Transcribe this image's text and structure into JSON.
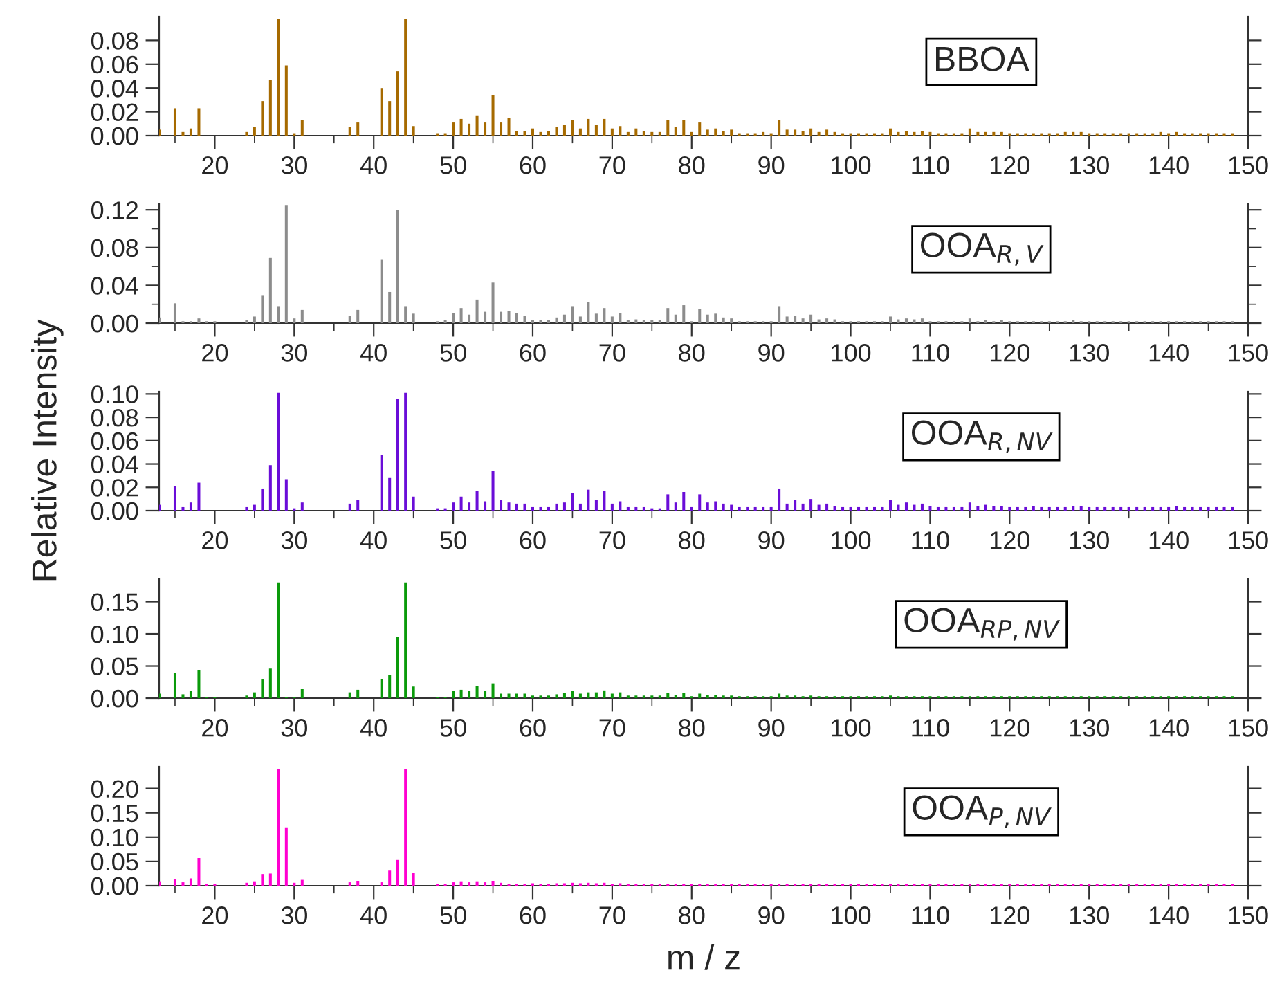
{
  "chart_data": [
    {
      "type": "bar",
      "annotations": [
        "BBOA"
      ],
      "color": "#a66a00",
      "xlim": [
        13,
        150
      ],
      "ylim": [
        0,
        0.1
      ],
      "yticks": [
        {
          "value": 0,
          "label": "0.00"
        },
        {
          "value": 0.02,
          "label": "0.02"
        },
        {
          "value": 0.04,
          "label": "0.04"
        },
        {
          "value": 0.06,
          "label": "0.06"
        },
        {
          "value": 0.08,
          "label": "0.08"
        }
      ],
      "xticks": [
        {
          "value": 15,
          "label": null
        },
        20,
        {
          "value": 25,
          "label": null
        },
        30,
        {
          "value": 35,
          "label": null
        },
        40,
        {
          "value": 45,
          "label": null
        },
        50,
        {
          "value": 55,
          "label": null
        },
        60,
        {
          "value": 65,
          "label": null
        },
        70,
        {
          "value": 75,
          "label": null
        },
        80,
        {
          "value": 85,
          "label": null
        },
        90,
        {
          "value": 95,
          "label": null
        },
        100,
        {
          "value": 105,
          "label": null
        },
        110,
        {
          "value": 115,
          "label": null
        },
        120,
        {
          "value": 125,
          "label": null
        },
        130,
        {
          "value": 135,
          "label": null
        },
        140,
        {
          "value": 145,
          "label": null
        },
        150
      ],
      "x": [
        13,
        15,
        16,
        17,
        18,
        19,
        20,
        24,
        25,
        26,
        27,
        28,
        29,
        30,
        31,
        37,
        38,
        41,
        42,
        43,
        44,
        45,
        48,
        49,
        50,
        51,
        52,
        53,
        54,
        55,
        56,
        57,
        58,
        59,
        60,
        61,
        62,
        63,
        64,
        65,
        66,
        67,
        68,
        69,
        70,
        71,
        72,
        73,
        74,
        75,
        76,
        77,
        78,
        79,
        80,
        81,
        82,
        83,
        84,
        85,
        86,
        87,
        88,
        89,
        90,
        91,
        92,
        93,
        94,
        95,
        96,
        97,
        98,
        99,
        100,
        101,
        102,
        103,
        104,
        105,
        106,
        107,
        108,
        109,
        110,
        111,
        112,
        113,
        114,
        115,
        116,
        117,
        118,
        119,
        120,
        121,
        122,
        123,
        124,
        125,
        126,
        127,
        128,
        129,
        130,
        131,
        132,
        133,
        134,
        135,
        136,
        137,
        138,
        139,
        140,
        141,
        142,
        143,
        144,
        145,
        146,
        147,
        148
      ],
      "values": [
        0.005,
        0.023,
        0.003,
        0.006,
        0.023,
        0,
        0,
        0.003,
        0.007,
        0.029,
        0.047,
        0.098,
        0.059,
        0.002,
        0.013,
        0.007,
        0.011,
        0.04,
        0.029,
        0.054,
        0.098,
        0.008,
        0.002,
        0.002,
        0.011,
        0.014,
        0.01,
        0.017,
        0.011,
        0.034,
        0.011,
        0.015,
        0.004,
        0.004,
        0.006,
        0.003,
        0.004,
        0.007,
        0.009,
        0.013,
        0.006,
        0.014,
        0.009,
        0.014,
        0.006,
        0.008,
        0.003,
        0.006,
        0.004,
        0.003,
        0.003,
        0.013,
        0.007,
        0.013,
        0.003,
        0.011,
        0.005,
        0.006,
        0.004,
        0.005,
        0.002,
        0.002,
        0.002,
        0.003,
        0.002,
        0.013,
        0.005,
        0.005,
        0.004,
        0.006,
        0.003,
        0.005,
        0.003,
        0.002,
        0.002,
        0.002,
        0.002,
        0.002,
        0.002,
        0.006,
        0.003,
        0.004,
        0.003,
        0.004,
        0.003,
        0.002,
        0.002,
        0.002,
        0.002,
        0.006,
        0.003,
        0.003,
        0.003,
        0.003,
        0.002,
        0.002,
        0.002,
        0.002,
        0.002,
        0.002,
        0.002,
        0.003,
        0.003,
        0.003,
        0.002,
        0.002,
        0.002,
        0.002,
        0.002,
        0.002,
        0.002,
        0.002,
        0.002,
        0.003,
        0.002,
        0.003,
        0.002,
        0.002,
        0.002,
        0.002,
        0.002,
        0.002,
        0.002
      ]
    },
    {
      "type": "bar",
      "annotations": [
        "OOA$_{R,V}$"
      ],
      "color": "#8c8c8c",
      "xlim": [
        13,
        150
      ],
      "ylim": [
        0,
        0.126
      ],
      "yticks": [
        {
          "value": 0,
          "label": "0.00"
        },
        {
          "value": 0.02,
          "label": null
        },
        {
          "value": 0.04,
          "label": "0.04"
        },
        {
          "value": 0.06,
          "label": null
        },
        {
          "value": 0.08,
          "label": "0.08"
        },
        {
          "value": 0.1,
          "label": null
        },
        {
          "value": 0.12,
          "label": "0.12"
        }
      ],
      "xticks": [
        {
          "value": 15,
          "label": null
        },
        20,
        {
          "value": 25,
          "label": null
        },
        30,
        {
          "value": 35,
          "label": null
        },
        40,
        {
          "value": 45,
          "label": null
        },
        50,
        {
          "value": 55,
          "label": null
        },
        60,
        {
          "value": 65,
          "label": null
        },
        70,
        {
          "value": 75,
          "label": null
        },
        80,
        {
          "value": 85,
          "label": null
        },
        90,
        {
          "value": 95,
          "label": null
        },
        100,
        {
          "value": 105,
          "label": null
        },
        110,
        {
          "value": 115,
          "label": null
        },
        120,
        {
          "value": 125,
          "label": null
        },
        130,
        {
          "value": 135,
          "label": null
        },
        140,
        {
          "value": 145,
          "label": null
        },
        150
      ],
      "x": [
        13,
        15,
        16,
        17,
        18,
        19,
        20,
        24,
        25,
        26,
        27,
        28,
        29,
        30,
        31,
        37,
        38,
        41,
        42,
        43,
        44,
        45,
        48,
        49,
        50,
        51,
        52,
        53,
        54,
        55,
        56,
        57,
        58,
        59,
        60,
        61,
        62,
        63,
        64,
        65,
        66,
        67,
        68,
        69,
        70,
        71,
        72,
        73,
        74,
        75,
        76,
        77,
        78,
        79,
        80,
        81,
        82,
        83,
        84,
        85,
        86,
        87,
        88,
        89,
        90,
        91,
        92,
        93,
        94,
        95,
        96,
        97,
        98,
        99,
        100,
        101,
        102,
        103,
        104,
        105,
        106,
        107,
        108,
        109,
        110,
        111,
        112,
        113,
        114,
        115,
        116,
        117,
        118,
        119,
        120,
        121,
        122,
        123,
        124,
        125,
        126,
        127,
        128,
        129,
        130,
        131,
        132,
        133,
        134,
        135,
        136,
        137,
        138,
        139,
        140,
        141,
        142,
        143,
        144,
        145,
        146,
        147,
        148
      ],
      "values": [
        0.006,
        0.021,
        0.002,
        0.002,
        0.005,
        0.002,
        0.002,
        0.003,
        0.007,
        0.029,
        0.069,
        0.018,
        0.125,
        0.005,
        0.014,
        0.008,
        0.014,
        0.067,
        0.033,
        0.12,
        0.018,
        0.01,
        0.002,
        0.003,
        0.011,
        0.016,
        0.009,
        0.025,
        0.012,
        0.043,
        0.012,
        0.013,
        0.011,
        0.008,
        0.003,
        0.003,
        0.003,
        0.006,
        0.009,
        0.018,
        0.007,
        0.022,
        0.01,
        0.016,
        0.007,
        0.011,
        0.003,
        0.004,
        0.003,
        0.003,
        0.003,
        0.016,
        0.009,
        0.019,
        0.002,
        0.015,
        0.009,
        0.01,
        0.006,
        0.005,
        0.002,
        0.002,
        0.002,
        0.002,
        0.002,
        0.018,
        0.007,
        0.008,
        0.005,
        0.009,
        0.004,
        0.005,
        0.004,
        0.002,
        0.002,
        0.002,
        0.002,
        0.002,
        0.002,
        0.007,
        0.004,
        0.005,
        0.004,
        0.005,
        0.002,
        0.002,
        0.002,
        0.002,
        0.002,
        0.005,
        0.002,
        0.003,
        0.002,
        0.003,
        0.002,
        0.002,
        0.002,
        0.002,
        0.002,
        0.002,
        0.002,
        0.002,
        0.003,
        0.002,
        0.002,
        0.002,
        0.002,
        0.002,
        0.002,
        0.002,
        0.002,
        0.002,
        0.002,
        0.002,
        0.002,
        0.002,
        0.002,
        0.002,
        0.002,
        0.002,
        0.002,
        0.002,
        0.002
      ]
    },
    {
      "type": "bar",
      "annotations": [
        "OOA$_{R,NV}$"
      ],
      "ylabel": "Relative Intensity",
      "color": "#6a0dd8",
      "xlim": [
        13,
        150
      ],
      "ylim": [
        0,
        0.102
      ],
      "yticks": [
        {
          "value": 0,
          "label": "0.00"
        },
        {
          "value": 0.02,
          "label": "0.02"
        },
        {
          "value": 0.04,
          "label": "0.04"
        },
        {
          "value": 0.06,
          "label": "0.06"
        },
        {
          "value": 0.08,
          "label": "0.08"
        },
        {
          "value": 0.1,
          "label": "0.10"
        }
      ],
      "xticks": [
        {
          "value": 15,
          "label": null
        },
        20,
        {
          "value": 25,
          "label": null
        },
        30,
        {
          "value": 35,
          "label": null
        },
        40,
        {
          "value": 45,
          "label": null
        },
        50,
        {
          "value": 55,
          "label": null
        },
        60,
        {
          "value": 65,
          "label": null
        },
        70,
        {
          "value": 75,
          "label": null
        },
        80,
        {
          "value": 85,
          "label": null
        },
        90,
        {
          "value": 95,
          "label": null
        },
        100,
        {
          "value": 105,
          "label": null
        },
        110,
        {
          "value": 115,
          "label": null
        },
        120,
        {
          "value": 125,
          "label": null
        },
        130,
        {
          "value": 135,
          "label": null
        },
        140,
        {
          "value": 145,
          "label": null
        },
        150
      ],
      "x": [
        13,
        15,
        16,
        17,
        18,
        19,
        20,
        24,
        25,
        26,
        27,
        28,
        29,
        30,
        31,
        37,
        38,
        41,
        42,
        43,
        44,
        45,
        48,
        49,
        50,
        51,
        52,
        53,
        54,
        55,
        56,
        57,
        58,
        59,
        60,
        61,
        62,
        63,
        64,
        65,
        66,
        67,
        68,
        69,
        70,
        71,
        72,
        73,
        74,
        75,
        76,
        77,
        78,
        79,
        80,
        81,
        82,
        83,
        84,
        85,
        86,
        87,
        88,
        89,
        90,
        91,
        92,
        93,
        94,
        95,
        96,
        97,
        98,
        99,
        100,
        101,
        102,
        103,
        104,
        105,
        106,
        107,
        108,
        109,
        110,
        111,
        112,
        113,
        114,
        115,
        116,
        117,
        118,
        119,
        120,
        121,
        122,
        123,
        124,
        125,
        126,
        127,
        128,
        129,
        130,
        131,
        132,
        133,
        134,
        135,
        136,
        137,
        138,
        139,
        140,
        141,
        142,
        143,
        144,
        145,
        146,
        147,
        148
      ],
      "values": [
        0.005,
        0.021,
        0.003,
        0.007,
        0.024,
        0,
        0,
        0.003,
        0.005,
        0.019,
        0.039,
        0.101,
        0.027,
        0.002,
        0.007,
        0.006,
        0.009,
        0.048,
        0.028,
        0.096,
        0.101,
        0.012,
        0.002,
        0.002,
        0.007,
        0.012,
        0.007,
        0.017,
        0.008,
        0.034,
        0.009,
        0.007,
        0.006,
        0.006,
        0.003,
        0.003,
        0.003,
        0.006,
        0.007,
        0.015,
        0.006,
        0.018,
        0.009,
        0.017,
        0.006,
        0.008,
        0.003,
        0.003,
        0.003,
        0.002,
        0.002,
        0.014,
        0.007,
        0.016,
        0.003,
        0.014,
        0.007,
        0.008,
        0.006,
        0.005,
        0.003,
        0.003,
        0.003,
        0.003,
        0.003,
        0.019,
        0.006,
        0.009,
        0.006,
        0.01,
        0.005,
        0.006,
        0.004,
        0.003,
        0.003,
        0.003,
        0.003,
        0.003,
        0.003,
        0.009,
        0.005,
        0.007,
        0.005,
        0.006,
        0.004,
        0.003,
        0.003,
        0.003,
        0.003,
        0.007,
        0.004,
        0.005,
        0.004,
        0.004,
        0.003,
        0.003,
        0.003,
        0.004,
        0.003,
        0.003,
        0.003,
        0.003,
        0.004,
        0.004,
        0.003,
        0.003,
        0.003,
        0.003,
        0.003,
        0.003,
        0.003,
        0.003,
        0.003,
        0.003,
        0.003,
        0.004,
        0.003,
        0.003,
        0.003,
        0.003,
        0.003,
        0.003,
        0.003
      ]
    },
    {
      "type": "bar",
      "annotations": [
        "OOA$_{RP,NV}$"
      ],
      "color": "#0a9a0a",
      "xlim": [
        13,
        150
      ],
      "ylim": [
        0,
        0.185
      ],
      "yticks": [
        {
          "value": 0,
          "label": "0.00"
        },
        {
          "value": 0.05,
          "label": "0.05"
        },
        {
          "value": 0.1,
          "label": "0.10"
        },
        {
          "value": 0.15,
          "label": "0.15"
        }
      ],
      "xticks": [
        {
          "value": 15,
          "label": null
        },
        20,
        {
          "value": 25,
          "label": null
        },
        30,
        {
          "value": 35,
          "label": null
        },
        40,
        {
          "value": 45,
          "label": null
        },
        50,
        {
          "value": 55,
          "label": null
        },
        60,
        {
          "value": 65,
          "label": null
        },
        70,
        {
          "value": 75,
          "label": null
        },
        80,
        {
          "value": 85,
          "label": null
        },
        90,
        {
          "value": 95,
          "label": null
        },
        100,
        {
          "value": 105,
          "label": null
        },
        110,
        {
          "value": 115,
          "label": null
        },
        120,
        {
          "value": 125,
          "label": null
        },
        130,
        {
          "value": 135,
          "label": null
        },
        140,
        {
          "value": 145,
          "label": null
        },
        150
      ],
      "x": [
        13,
        15,
        16,
        17,
        18,
        19,
        20,
        24,
        25,
        26,
        27,
        28,
        29,
        30,
        31,
        37,
        38,
        41,
        42,
        43,
        44,
        45,
        48,
        49,
        50,
        51,
        52,
        53,
        54,
        55,
        56,
        57,
        58,
        59,
        60,
        61,
        62,
        63,
        64,
        65,
        66,
        67,
        68,
        69,
        70,
        71,
        72,
        73,
        74,
        75,
        76,
        77,
        78,
        79,
        80,
        81,
        82,
        83,
        84,
        85,
        86,
        87,
        88,
        89,
        90,
        91,
        92,
        93,
        94,
        95,
        96,
        97,
        98,
        99,
        100,
        101,
        102,
        103,
        104,
        105,
        106,
        107,
        108,
        109,
        110,
        111,
        112,
        113,
        114,
        115,
        116,
        117,
        118,
        119,
        120,
        121,
        122,
        123,
        124,
        125,
        126,
        127,
        128,
        129,
        130,
        131,
        132,
        133,
        134,
        135,
        136,
        137,
        138,
        139,
        140,
        141,
        142,
        143,
        144,
        145,
        146,
        147,
        148
      ],
      "values": [
        0.007,
        0.039,
        0.006,
        0.011,
        0.043,
        0.002,
        0.002,
        0.004,
        0.009,
        0.029,
        0.046,
        0.18,
        0.002,
        0.002,
        0.014,
        0.009,
        0.013,
        0.03,
        0.036,
        0.095,
        0.18,
        0.018,
        0.002,
        0.002,
        0.011,
        0.013,
        0.011,
        0.019,
        0.011,
        0.023,
        0.007,
        0.007,
        0.007,
        0.007,
        0.004,
        0.004,
        0.004,
        0.006,
        0.008,
        0.011,
        0.007,
        0.009,
        0.009,
        0.012,
        0.007,
        0.009,
        0.004,
        0.004,
        0.004,
        0.004,
        0.004,
        0.008,
        0.005,
        0.008,
        0.003,
        0.007,
        0.005,
        0.005,
        0.004,
        0.004,
        0.003,
        0.003,
        0.003,
        0.003,
        0.003,
        0.007,
        0.004,
        0.004,
        0.003,
        0.004,
        0.003,
        0.003,
        0.003,
        0.003,
        0.003,
        0.003,
        0.003,
        0.003,
        0.003,
        0.004,
        0.003,
        0.003,
        0.003,
        0.003,
        0.003,
        0.003,
        0.003,
        0.003,
        0.003,
        0.003,
        0.003,
        0.003,
        0.003,
        0.003,
        0.003,
        0.003,
        0.003,
        0.003,
        0.003,
        0.003,
        0.003,
        0.003,
        0.003,
        0.003,
        0.003,
        0.003,
        0.003,
        0.003,
        0.003,
        0.003,
        0.003,
        0.003,
        0.003,
        0.003,
        0.003,
        0.003,
        0.003,
        0.003,
        0.003,
        0.003,
        0.003,
        0.003,
        0.003
      ]
    },
    {
      "type": "bar",
      "annotations": [
        "OOA$_{P,NV}$"
      ],
      "xlabel": "m / z",
      "color": "#ff00d0",
      "xlim": [
        13,
        150
      ],
      "ylim": [
        0,
        0.245
      ],
      "yticks": [
        {
          "value": 0,
          "label": "0.00"
        },
        {
          "value": 0.05,
          "label": "0.05"
        },
        {
          "value": 0.1,
          "label": "0.10"
        },
        {
          "value": 0.15,
          "label": "0.15"
        },
        {
          "value": 0.2,
          "label": "0.20"
        }
      ],
      "xticks": [
        {
          "value": 15,
          "label": null
        },
        20,
        {
          "value": 25,
          "label": null
        },
        30,
        {
          "value": 35,
          "label": null
        },
        40,
        {
          "value": 45,
          "label": null
        },
        50,
        {
          "value": 55,
          "label": null
        },
        60,
        {
          "value": 65,
          "label": null
        },
        70,
        {
          "value": 75,
          "label": null
        },
        80,
        {
          "value": 85,
          "label": null
        },
        90,
        {
          "value": 95,
          "label": null
        },
        100,
        {
          "value": 105,
          "label": null
        },
        110,
        {
          "value": 115,
          "label": null
        },
        120,
        {
          "value": 125,
          "label": null
        },
        130,
        {
          "value": 135,
          "label": null
        },
        140,
        {
          "value": 145,
          "label": null
        },
        150
      ],
      "x": [
        13,
        15,
        16,
        17,
        18,
        19,
        20,
        24,
        25,
        26,
        27,
        28,
        29,
        30,
        31,
        37,
        38,
        41,
        42,
        43,
        44,
        45,
        48,
        49,
        50,
        51,
        52,
        53,
        54,
        55,
        56,
        57,
        58,
        59,
        60,
        61,
        62,
        63,
        64,
        65,
        66,
        67,
        68,
        69,
        70,
        71,
        72,
        73,
        74,
        75,
        76,
        77,
        78,
        79,
        80,
        81,
        82,
        83,
        84,
        85,
        86,
        87,
        88,
        89,
        90,
        91,
        92,
        93,
        94,
        95,
        96,
        97,
        98,
        99,
        100,
        101,
        102,
        103,
        104,
        105,
        106,
        107,
        108,
        109,
        110,
        111,
        112,
        113,
        114,
        115,
        116,
        117,
        118,
        119,
        120,
        121,
        122,
        123,
        124,
        125,
        126,
        127,
        128,
        129,
        130,
        131,
        132,
        133,
        134,
        135,
        136,
        137,
        138,
        139,
        140,
        141,
        142,
        143,
        144,
        145,
        146,
        147,
        148
      ],
      "values": [
        0.009,
        0.013,
        0.007,
        0.015,
        0.057,
        0.003,
        0.003,
        0.006,
        0.009,
        0.024,
        0.025,
        0.24,
        0.12,
        0.006,
        0.012,
        0.007,
        0.01,
        0.007,
        0.031,
        0.053,
        0.24,
        0.026,
        0.003,
        0.004,
        0.007,
        0.009,
        0.007,
        0.009,
        0.007,
        0.01,
        0.006,
        0.004,
        0.004,
        0.004,
        0.005,
        0.004,
        0.004,
        0.005,
        0.005,
        0.006,
        0.005,
        0.006,
        0.005,
        0.006,
        0.004,
        0.005,
        0.003,
        0.003,
        0.003,
        0.003,
        0.003,
        0.004,
        0.003,
        0.003,
        0.003,
        0.003,
        0.003,
        0.003,
        0.003,
        0.003,
        0.003,
        0.003,
        0.003,
        0.003,
        0.003,
        0.003,
        0.003,
        0.003,
        0.003,
        0.003,
        0.003,
        0.003,
        0.003,
        0.003,
        0.003,
        0.003,
        0.003,
        0.003,
        0.003,
        0.003,
        0.003,
        0.003,
        0.003,
        0.003,
        0.003,
        0.003,
        0.003,
        0.003,
        0.003,
        0.003,
        0.003,
        0.003,
        0.003,
        0.003,
        0.003,
        0.003,
        0.003,
        0.003,
        0.003,
        0.003,
        0.003,
        0.003,
        0.003,
        0.003,
        0.003,
        0.003,
        0.003,
        0.003,
        0.003,
        0.003,
        0.003,
        0.003,
        0.003,
        0.003,
        0.003,
        0.003,
        0.003,
        0.003,
        0.003,
        0.003,
        0.003,
        0.003,
        0.003
      ]
    }
  ]
}
